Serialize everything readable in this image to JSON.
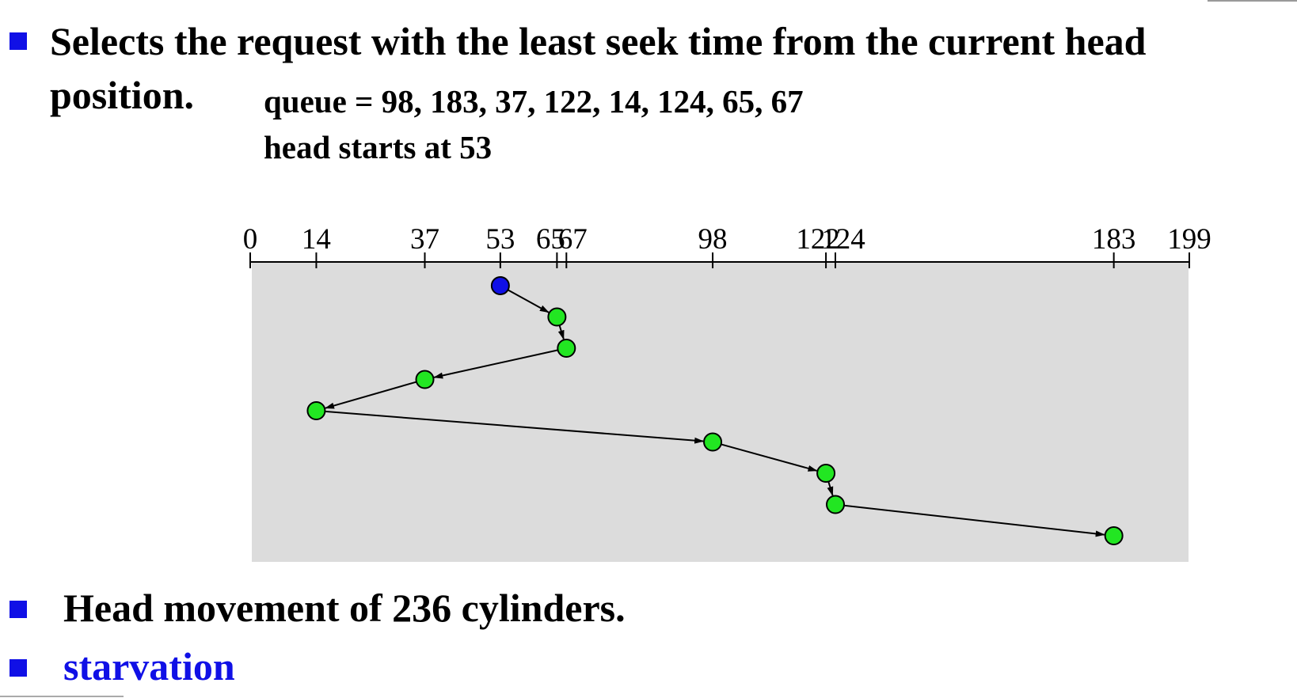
{
  "bullets": {
    "intro": "Selects the request with the least seek time from the current head",
    "intro_cont": "position.",
    "queue": "queue = 98, 183, 37, 122, 14, 124, 65, 67",
    "head_start": "head starts at 53",
    "movement": "Head movement of 236 cylinders.",
    "starvation": "starvation"
  },
  "diagram": {
    "axis_min": 0,
    "axis_max": 199,
    "tick_values": [
      0,
      14,
      37,
      53,
      65,
      67,
      98,
      122,
      124,
      183,
      199
    ],
    "tick_labels": [
      "0",
      "14",
      "37",
      "53",
      "65",
      "67",
      "98",
      "122",
      "124",
      "183",
      "199"
    ],
    "service_order": [
      53,
      65,
      67,
      37,
      14,
      98,
      122,
      124,
      183
    ],
    "colors": {
      "start": "#1010e6",
      "request": "#22e622",
      "panel": "#dcdcdc",
      "bullet": "#1010e6"
    }
  }
}
